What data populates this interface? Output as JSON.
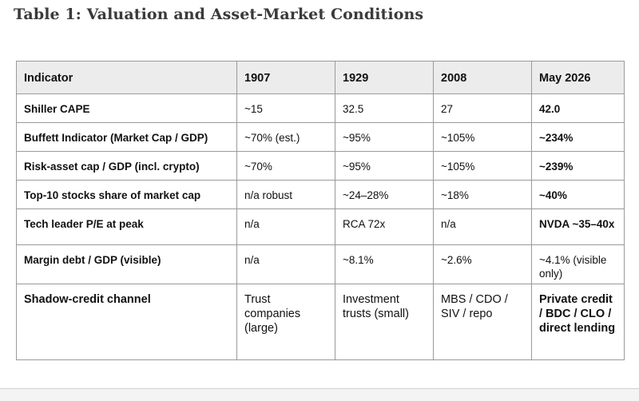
{
  "caption": "Table 1: Valuation and Asset-Market Conditions",
  "table": {
    "headers": [
      "Indicator",
      "1907",
      "1929",
      "2008",
      "May 2026"
    ],
    "rows": [
      [
        "Shiller CAPE",
        "~15",
        "32.5",
        "27",
        "42.0"
      ],
      [
        "Buffett Indicator (Market Cap / GDP)",
        "~70% (est.)",
        "~95%",
        "~105%",
        "~234%"
      ],
      [
        "Risk-asset cap / GDP (incl. crypto)",
        "~70%",
        "~95%",
        "~105%",
        "~239%"
      ],
      [
        "Top-10 stocks share of market cap",
        "n/a robust",
        "~24–28%",
        "~18%",
        "~40%"
      ],
      [
        "Tech leader P/E at peak",
        "n/a",
        "RCA 72x",
        "n/a",
        "NVDA ~35–40x"
      ],
      [
        "Margin debt / GDP (visible)",
        "n/a",
        "~8.1%",
        "~2.6%",
        "~4.1% (visible only)"
      ],
      [
        "Shadow-credit channel",
        "Trust companies (large)",
        "Investment trusts (small)",
        "MBS / CDO / SIV / repo",
        "Private credit / BDC / CLO / direct lending"
      ]
    ]
  }
}
